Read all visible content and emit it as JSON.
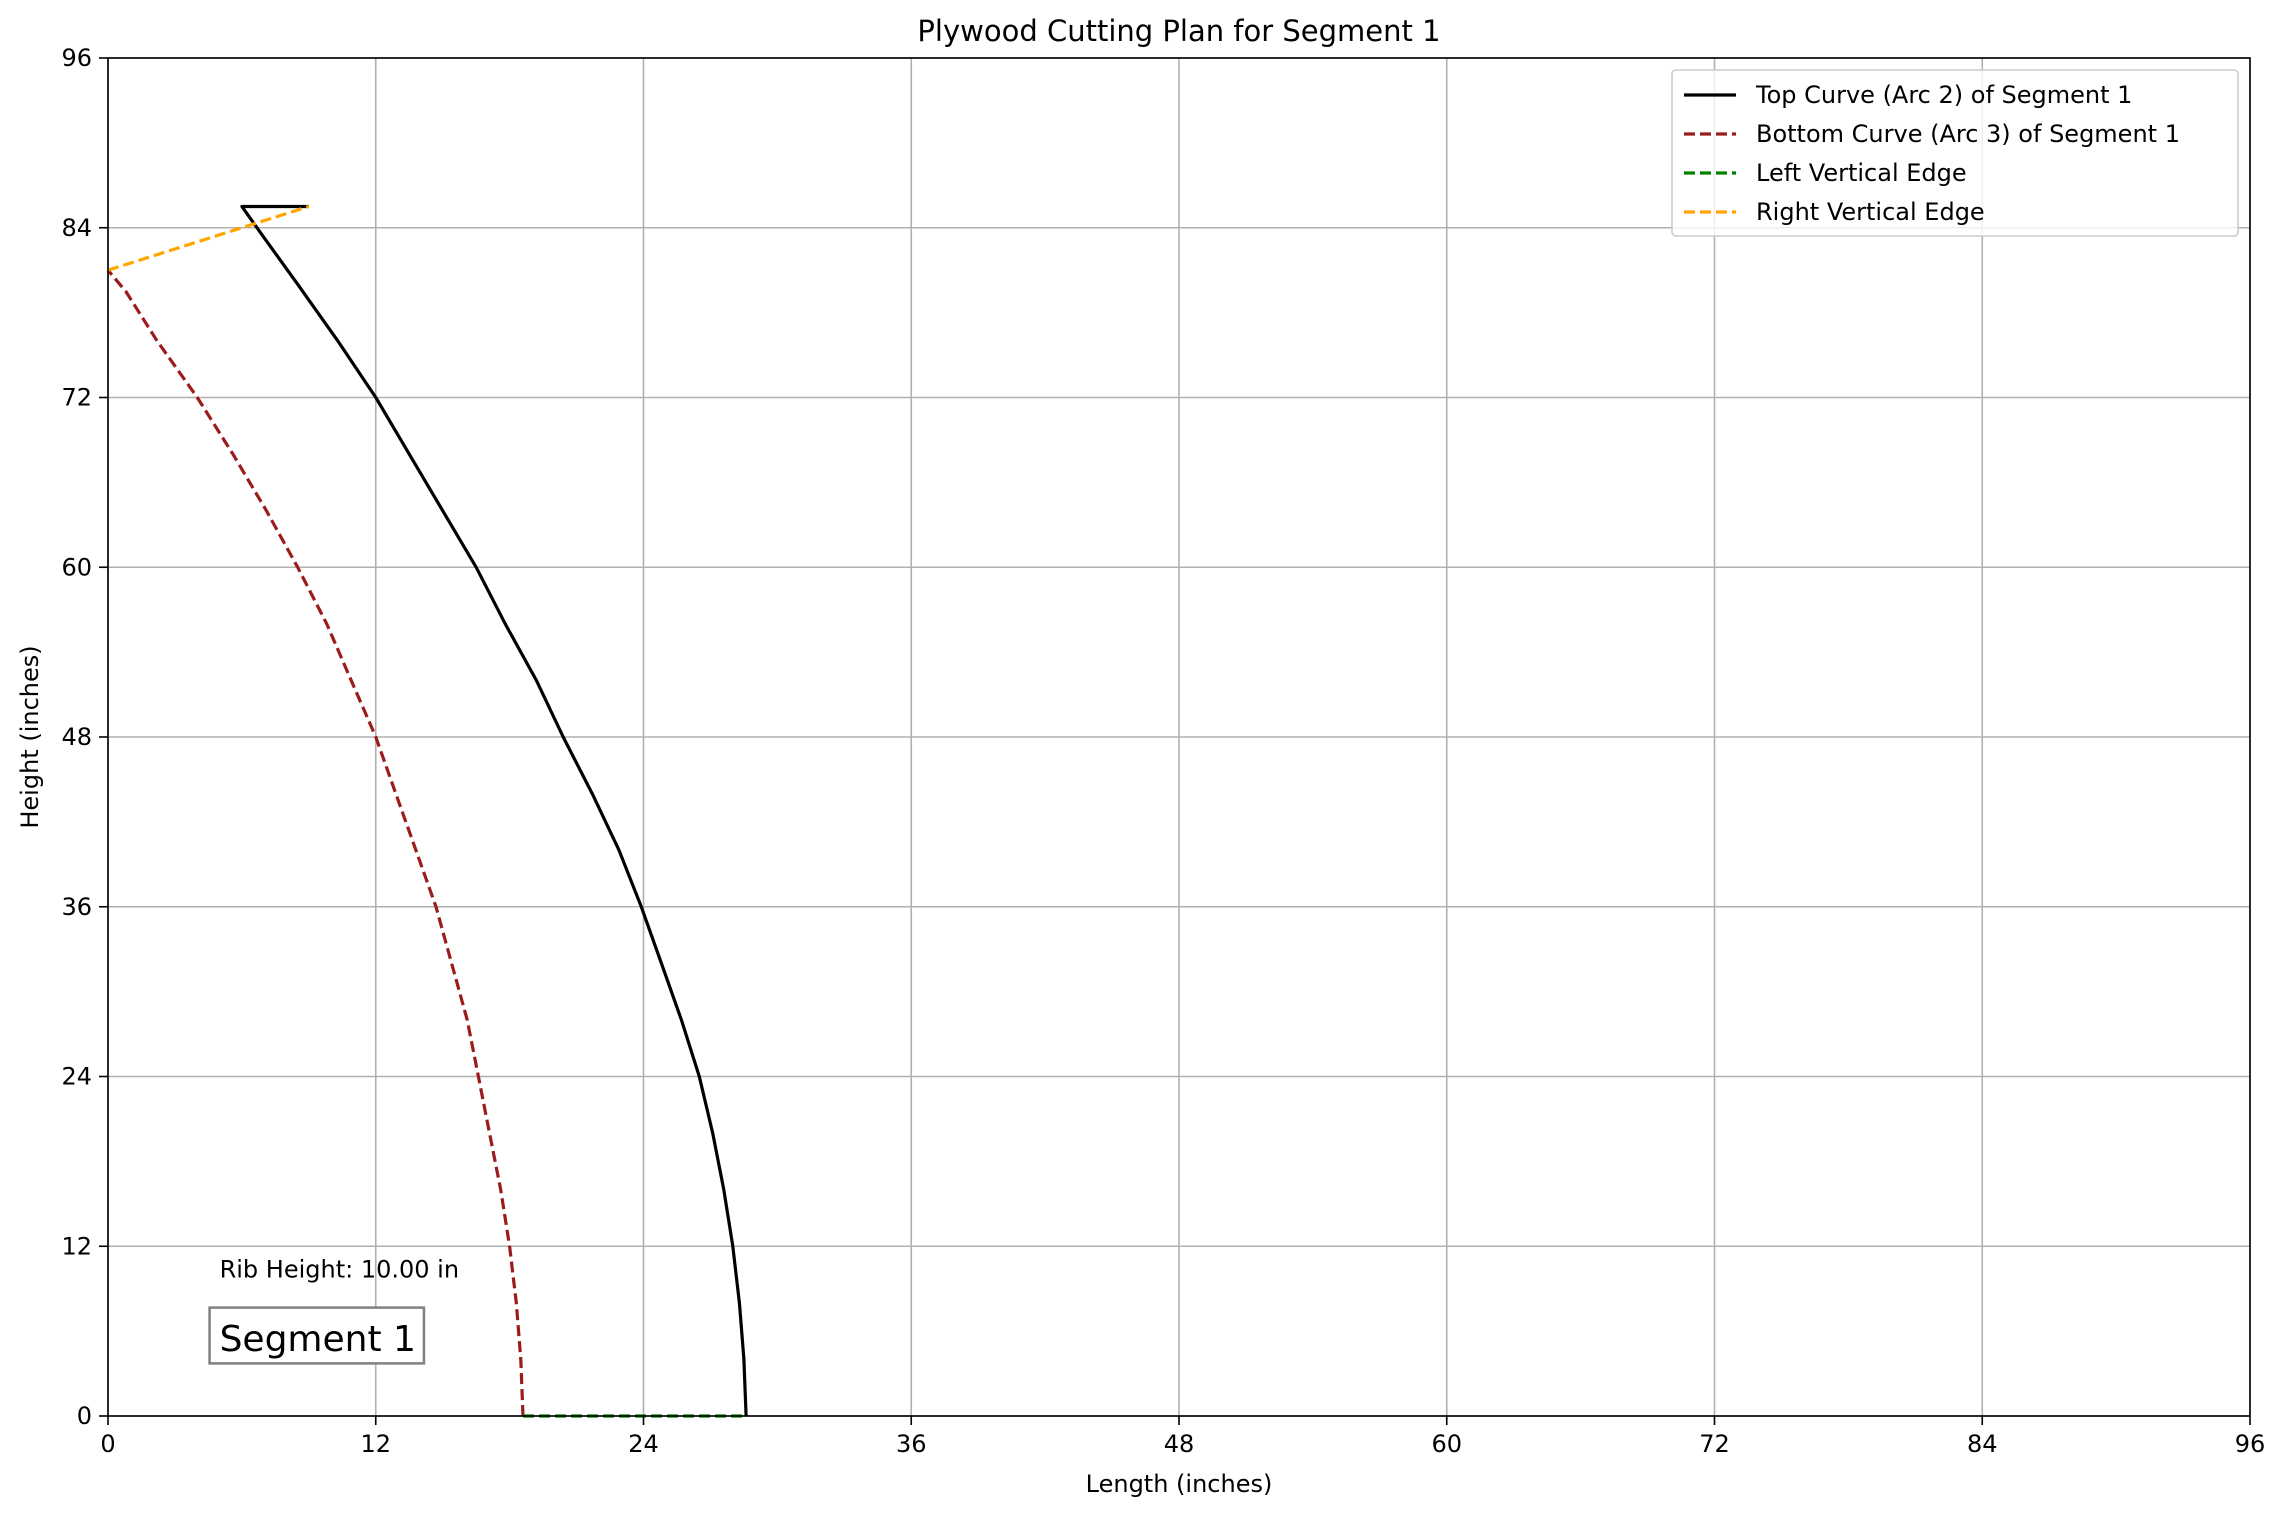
{
  "chart_data": {
    "type": "line",
    "title": "Plywood Cutting Plan for Segment 1",
    "xlabel": "Length (inches)",
    "ylabel": "Height (inches)",
    "xlim": [
      0,
      96
    ],
    "ylim": [
      0,
      96
    ],
    "xticks": [
      0,
      12,
      24,
      36,
      48,
      60,
      72,
      84,
      96
    ],
    "yticks": [
      0,
      12,
      24,
      36,
      48,
      60,
      72,
      84,
      96
    ],
    "grid": true,
    "legend_position": "top-right",
    "series": [
      {
        "name": "Top Curve (Arc 2) of Segment 1",
        "color": "#000000",
        "style": "solid",
        "points": [
          [
            28.6,
            0
          ],
          [
            28.5,
            4
          ],
          [
            28.3,
            8
          ],
          [
            28.0,
            12
          ],
          [
            27.6,
            16
          ],
          [
            27.1,
            20
          ],
          [
            26.5,
            24
          ],
          [
            25.7,
            28
          ],
          [
            24.8,
            32
          ],
          [
            23.9,
            36
          ],
          [
            22.9,
            40
          ],
          [
            21.7,
            44
          ],
          [
            20.4,
            48
          ],
          [
            19.2,
            52
          ],
          [
            17.8,
            56
          ],
          [
            16.5,
            60
          ],
          [
            15.0,
            64
          ],
          [
            13.5,
            68
          ],
          [
            12.0,
            72
          ],
          [
            10.3,
            76
          ],
          [
            8.5,
            80
          ],
          [
            6.9,
            83.5
          ],
          [
            6.0,
            85.5
          ],
          [
            9.0,
            85.5
          ]
        ]
      },
      {
        "name": "Bottom Curve (Arc 3) of Segment 1",
        "color": "#9c1c1c",
        "style": "dashed",
        "points": [
          [
            18.6,
            0
          ],
          [
            18.5,
            4
          ],
          [
            18.3,
            8
          ],
          [
            18.0,
            12
          ],
          [
            17.6,
            16
          ],
          [
            17.1,
            20
          ],
          [
            16.6,
            24
          ],
          [
            16.1,
            28
          ],
          [
            15.4,
            32
          ],
          [
            14.7,
            36
          ],
          [
            13.8,
            40
          ],
          [
            12.9,
            44
          ],
          [
            12.0,
            48
          ],
          [
            10.9,
            52
          ],
          [
            9.8,
            56
          ],
          [
            8.5,
            60
          ],
          [
            7.1,
            64
          ],
          [
            5.6,
            68
          ],
          [
            4.0,
            72
          ],
          [
            2.2,
            76
          ],
          [
            0.8,
            79.5
          ],
          [
            0,
            81
          ]
        ]
      },
      {
        "name": "Left Vertical Edge",
        "color": "#008000",
        "style": "dashed",
        "points": [
          [
            18.6,
            0
          ],
          [
            28.6,
            0
          ]
        ]
      },
      {
        "name": "Right Vertical Edge",
        "color": "#ffa500",
        "style": "dashed",
        "points": [
          [
            0,
            81
          ],
          [
            9.0,
            85.5
          ]
        ]
      }
    ],
    "annotations": [
      {
        "text": "Rib Height: 10.00 in",
        "x": 5,
        "y": 9.8
      },
      {
        "text": "Segment 1",
        "x": 5,
        "y": 5.5,
        "color": "#0000ff",
        "boxed": true
      }
    ]
  }
}
